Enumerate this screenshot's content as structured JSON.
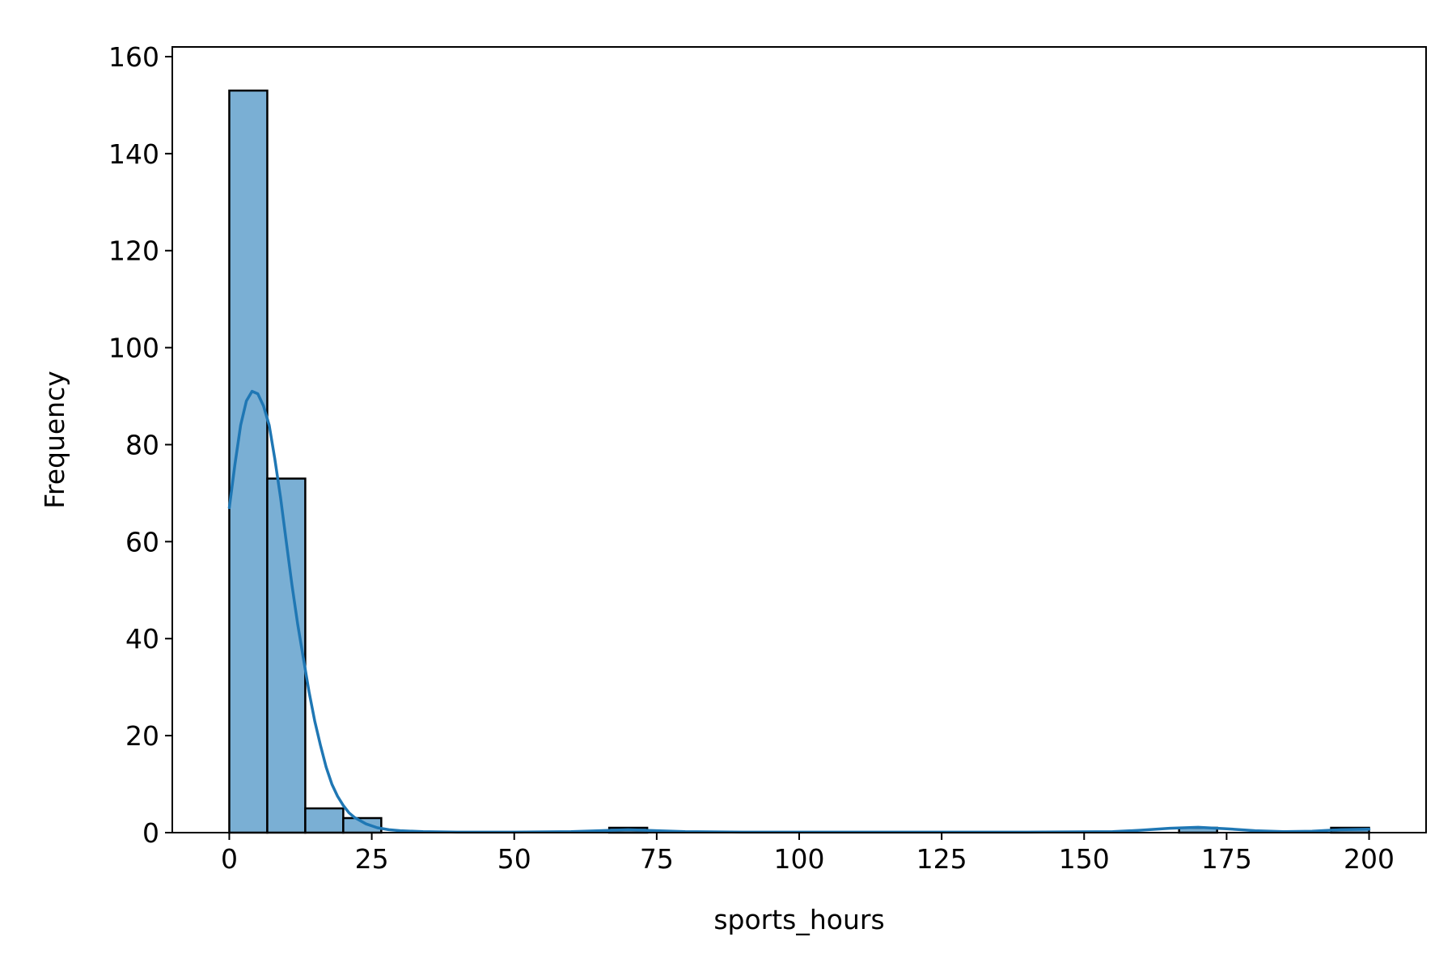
{
  "chart_data": {
    "type": "bar",
    "subtype": "histogram-with-kde",
    "title": "",
    "xlabel": "sports_hours",
    "ylabel": "Frequency",
    "xlim": [
      -10,
      210
    ],
    "ylim": [
      0,
      162
    ],
    "xticks": [
      0,
      25,
      50,
      75,
      100,
      125,
      150,
      175,
      200
    ],
    "yticks": [
      0,
      20,
      40,
      60,
      80,
      100,
      120,
      140,
      160
    ],
    "bin_edges": [
      0,
      6.667,
      13.333,
      20,
      26.667,
      33.333,
      40,
      46.667,
      53.333,
      60,
      66.667,
      73.333,
      80,
      86.667,
      93.333,
      100,
      106.667,
      113.333,
      120,
      126.667,
      133.333,
      140,
      146.667,
      153.333,
      160,
      166.667,
      173.333,
      180,
      186.667,
      193.333,
      200
    ],
    "values": [
      153,
      73,
      5,
      3,
      0,
      0,
      0,
      0,
      0,
      0,
      1,
      0,
      0,
      0,
      0,
      0,
      0,
      0,
      0,
      0,
      0,
      0,
      0,
      0,
      0,
      1,
      0,
      0,
      0,
      1
    ],
    "kde": {
      "x": [
        0,
        1,
        2,
        3,
        4,
        5,
        6,
        7,
        8,
        9,
        10,
        11,
        12,
        13,
        14,
        15,
        16,
        17,
        18,
        19,
        20,
        21,
        22,
        24,
        26,
        28,
        30,
        34,
        40,
        50,
        60,
        65,
        70,
        75,
        80,
        90,
        100,
        120,
        140,
        155,
        160,
        165,
        170,
        175,
        180,
        185,
        190,
        195,
        200
      ],
      "y": [
        67,
        76,
        84,
        89,
        91,
        90.5,
        88,
        84,
        77,
        69,
        60,
        51,
        43,
        36,
        29,
        23,
        18,
        13.5,
        10,
        7.5,
        5.6,
        4.1,
        3.1,
        1.8,
        1.0,
        0.6,
        0.4,
        0.2,
        0.1,
        0.1,
        0.2,
        0.4,
        0.6,
        0.4,
        0.2,
        0.1,
        0.1,
        0.1,
        0.1,
        0.2,
        0.5,
        0.9,
        1.1,
        0.8,
        0.4,
        0.2,
        0.3,
        0.6,
        0.7
      ]
    },
    "grid": false,
    "legend": "none",
    "colors": {
      "bar_fill": "#7aafd4",
      "bar_edge": "#000000",
      "kde_line": "#1f77b4"
    }
  }
}
